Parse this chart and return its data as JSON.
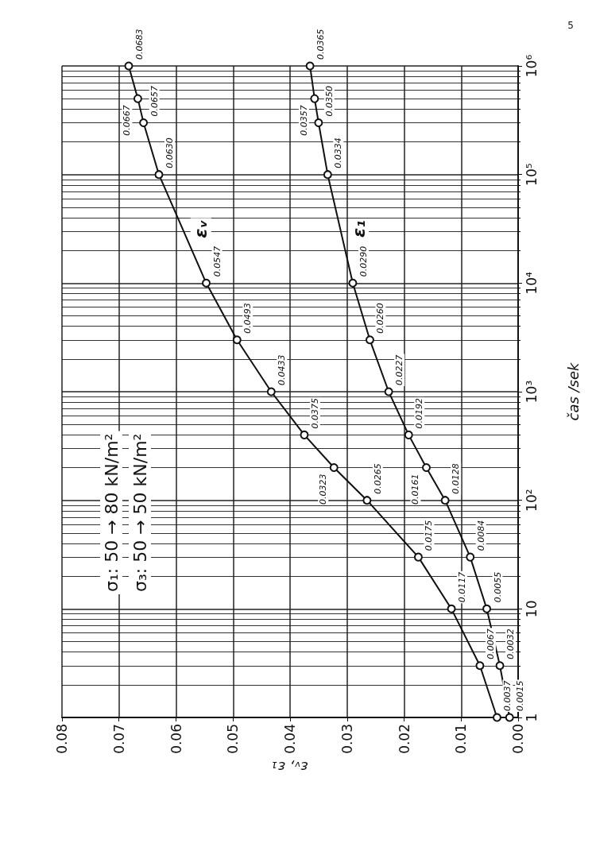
{
  "chart_data": {
    "type": "line",
    "xlabel": "εᵥ, ε₁",
    "ylabel": "čas /sek",
    "annotations": [
      "σ₁: 50 → 80 kN/m²",
      "σ₃: 50 → 50 kN/m²",
      "5",
      {
        "text": "0.0037",
        "x": 0.0037,
        "y": 1
      },
      {
        "text": "0.0067",
        "x": 0.0067,
        "y": 3
      },
      {
        "text": "0.0117",
        "x": 0.0117,
        "y": 10
      },
      {
        "text": "0.0175",
        "x": 0.0175,
        "y": 30
      },
      {
        "text": "0.0265",
        "x": 0.0265,
        "y": 100
      },
      {
        "text": "0.0323",
        "x": 0.0323,
        "y": 200
      },
      {
        "text": "0.0375",
        "x": 0.0375,
        "y": 400
      },
      {
        "text": "0.0433",
        "x": 0.0433,
        "y": 1000
      },
      {
        "text": "0.0493",
        "x": 0.0493,
        "y": 3000
      },
      {
        "text": "0.0547",
        "x": 0.0547,
        "y": 10000
      },
      {
        "text": "0.0630",
        "x": 0.063,
        "y": 100000
      },
      {
        "text": "0.0657",
        "x": 0.0657,
        "y": 300000
      },
      {
        "text": "0.0667",
        "x": 0.0667,
        "y": 500000
      },
      {
        "text": "0.0683",
        "x": 0.0683,
        "y": 1000000
      },
      {
        "text": "0.0015",
        "x": 0.0015,
        "y": 1
      },
      {
        "text": "0.0032",
        "x": 0.0032,
        "y": 3
      },
      {
        "text": "0.0055",
        "x": 0.0055,
        "y": 10
      },
      {
        "text": "0.0084",
        "x": 0.0084,
        "y": 30
      },
      {
        "text": "0.0128",
        "x": 0.0128,
        "y": 100
      },
      {
        "text": "0.0161",
        "x": 0.0161,
        "y": 200
      },
      {
        "text": "0.0192",
        "x": 0.0192,
        "y": 400
      },
      {
        "text": "0.0227",
        "x": 0.0227,
        "y": 1000
      },
      {
        "text": "0.0260",
        "x": 0.026,
        "y": 3000
      },
      {
        "text": "0.0290",
        "x": 0.029,
        "y": 10000
      },
      {
        "text": "0.0334",
        "x": 0.0334,
        "y": 100000
      },
      {
        "text": "0.0350",
        "x": 0.035,
        "y": 300000
      },
      {
        "text": "0.0357",
        "x": 0.0357,
        "y": 500000
      },
      {
        "text": "0.0365",
        "x": 0.0365,
        "y": 1000000
      }
    ],
    "series": [
      {
        "name": "εᵥ",
        "color": "#111111",
        "x": [
          0.0037,
          0.0067,
          0.0117,
          0.0175,
          0.0265,
          0.0323,
          0.0375,
          0.0433,
          0.0493,
          0.0547,
          0.063,
          0.0657,
          0.0667,
          0.0683
        ],
        "values": [
          1,
          3,
          10,
          30,
          100,
          200,
          400,
          1000,
          3000,
          10000,
          100000,
          300000,
          500000,
          1000000
        ]
      },
      {
        "name": "ε₁",
        "color": "#111111",
        "x": [
          0.0015,
          0.0032,
          0.0055,
          0.0084,
          0.0128,
          0.0161,
          0.0192,
          0.0227,
          0.026,
          0.029,
          0.0334,
          0.035,
          0.0357,
          0.0365
        ],
        "values": [
          1,
          3,
          10,
          30,
          100,
          200,
          400,
          1000,
          3000,
          10000,
          100000,
          300000,
          500000,
          1000000
        ]
      }
    ],
    "ylim": [
      1,
      1000000
    ],
    "yticks": [
      1,
      10,
      {
        "value": 100,
        "label": "10²"
      },
      {
        "value": 1000,
        "label": "10³"
      },
      {
        "value": 10000,
        "label": "10⁴"
      },
      {
        "value": 100000,
        "label": "10⁵"
      },
      {
        "value": 1000000,
        "label": "10⁶"
      }
    ],
    "xlim": [
      0.08,
      0
    ],
    "xticks": [
      0.08,
      0.07,
      0.06,
      0.05,
      0.04,
      0.03,
      0.02,
      0.01,
      {
        "value": 0,
        "label": "0.00"
      }
    ],
    "log": "y",
    "grid": true,
    "legend": false,
    "marker": "circle",
    "line_style": "solid"
  }
}
